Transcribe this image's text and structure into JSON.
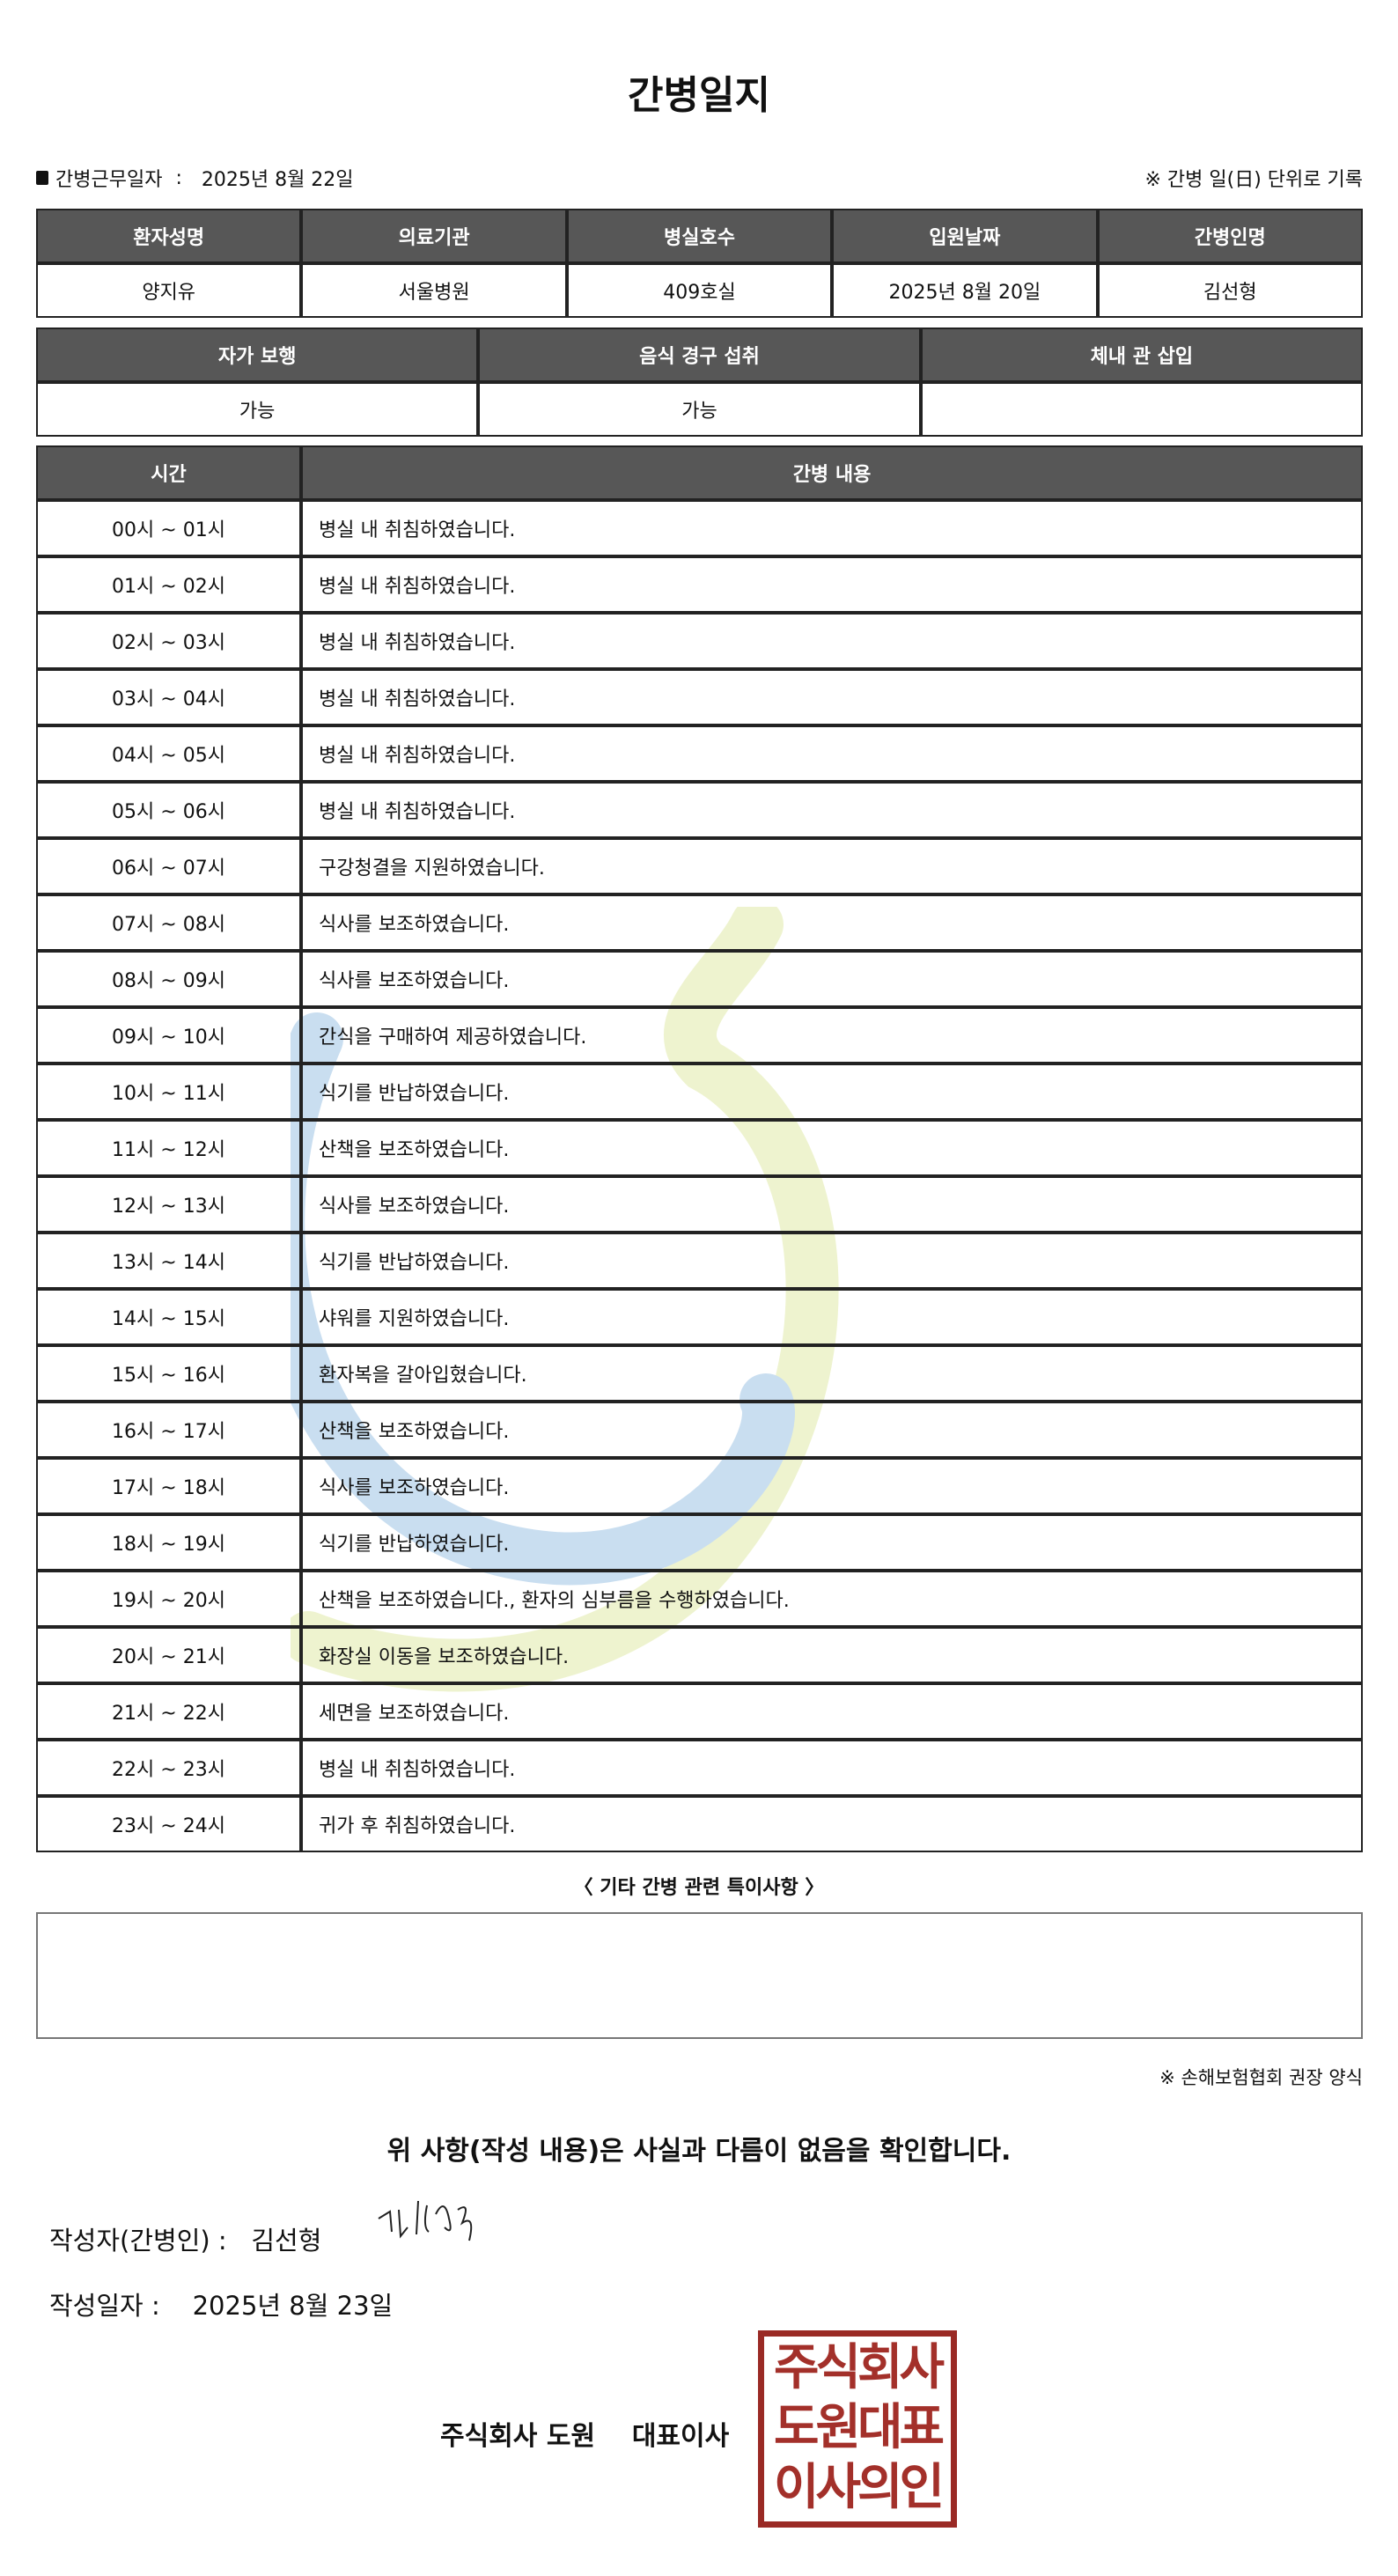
{
  "title": "간병일지",
  "meta": {
    "work_date_label": "간병근무일자",
    "work_date": "2025년 8월 22일",
    "note": "※ 간병 일(日) 단위로 기록"
  },
  "info": {
    "headers": [
      "환자성명",
      "의료기관",
      "병실호수",
      "입원날짜",
      "간병인명"
    ],
    "values": [
      "양지유",
      "서울병원",
      "409호실",
      "2025년 8월 20일",
      "김선형"
    ]
  },
  "status": {
    "headers": [
      "자가 보행",
      "음식 경구 섭취",
      "체내 관 삽입"
    ],
    "values": [
      "가능",
      "가능",
      ""
    ]
  },
  "log": {
    "headers": [
      "시간",
      "간병 내용"
    ],
    "rows": [
      [
        "00시 ~ 01시",
        "병실 내 취침하였습니다."
      ],
      [
        "01시 ~ 02시",
        "병실 내 취침하였습니다."
      ],
      [
        "02시 ~ 03시",
        "병실 내 취침하였습니다."
      ],
      [
        "03시 ~ 04시",
        "병실 내 취침하였습니다."
      ],
      [
        "04시 ~ 05시",
        "병실 내 취침하였습니다."
      ],
      [
        "05시 ~ 06시",
        "병실 내 취침하였습니다."
      ],
      [
        "06시 ~ 07시",
        "구강청결을 지원하였습니다."
      ],
      [
        "07시 ~ 08시",
        "식사를 보조하였습니다."
      ],
      [
        "08시 ~ 09시",
        "식사를 보조하였습니다."
      ],
      [
        "09시 ~ 10시",
        "간식을 구매하여 제공하였습니다."
      ],
      [
        "10시 ~ 11시",
        "식기를 반납하였습니다."
      ],
      [
        "11시 ~ 12시",
        "산책을 보조하였습니다."
      ],
      [
        "12시 ~ 13시",
        "식사를 보조하였습니다."
      ],
      [
        "13시 ~ 14시",
        "식기를 반납하였습니다."
      ],
      [
        "14시 ~ 15시",
        "샤워를 지원하였습니다."
      ],
      [
        "15시 ~ 16시",
        "환자복을 갈아입혔습니다."
      ],
      [
        "16시 ~ 17시",
        "산책을 보조하였습니다."
      ],
      [
        "17시 ~ 18시",
        "식사를 보조하였습니다."
      ],
      [
        "18시 ~ 19시",
        "식기를 반납하였습니다."
      ],
      [
        "19시 ~ 20시",
        "산책을 보조하였습니다., 환자의 심부름을 수행하였습니다."
      ],
      [
        "20시 ~ 21시",
        "화장실 이동을 보조하였습니다."
      ],
      [
        "21시 ~ 22시",
        "세면을 보조하였습니다."
      ],
      [
        "22시 ~ 23시",
        "병실 내 취침하였습니다."
      ],
      [
        "23시 ~ 24시",
        "귀가 후 취침하였습니다."
      ]
    ]
  },
  "special_notes": {
    "label": "〈 기타 간병 관련 특이사항 〉",
    "content": ""
  },
  "source_note": "※ 손해보험협회 권장 양식",
  "confirm": "위 사항(작성 내용)은 사실과 다름이 없음을 확인합니다.",
  "writer": {
    "label": "작성자(간병인) :",
    "name": "김선형"
  },
  "written_date": {
    "label": "작성일자 :",
    "value": "2025년 8월 23일"
  },
  "company": "주식회사 도원    대표이사",
  "stamp": {
    "text": "주식회사 도원대표 이사의인",
    "color": "#9a2a25"
  },
  "colors": {
    "header_bg": "#575757",
    "watermark_blue": "#c9def0",
    "watermark_green": "#eef3cf"
  }
}
